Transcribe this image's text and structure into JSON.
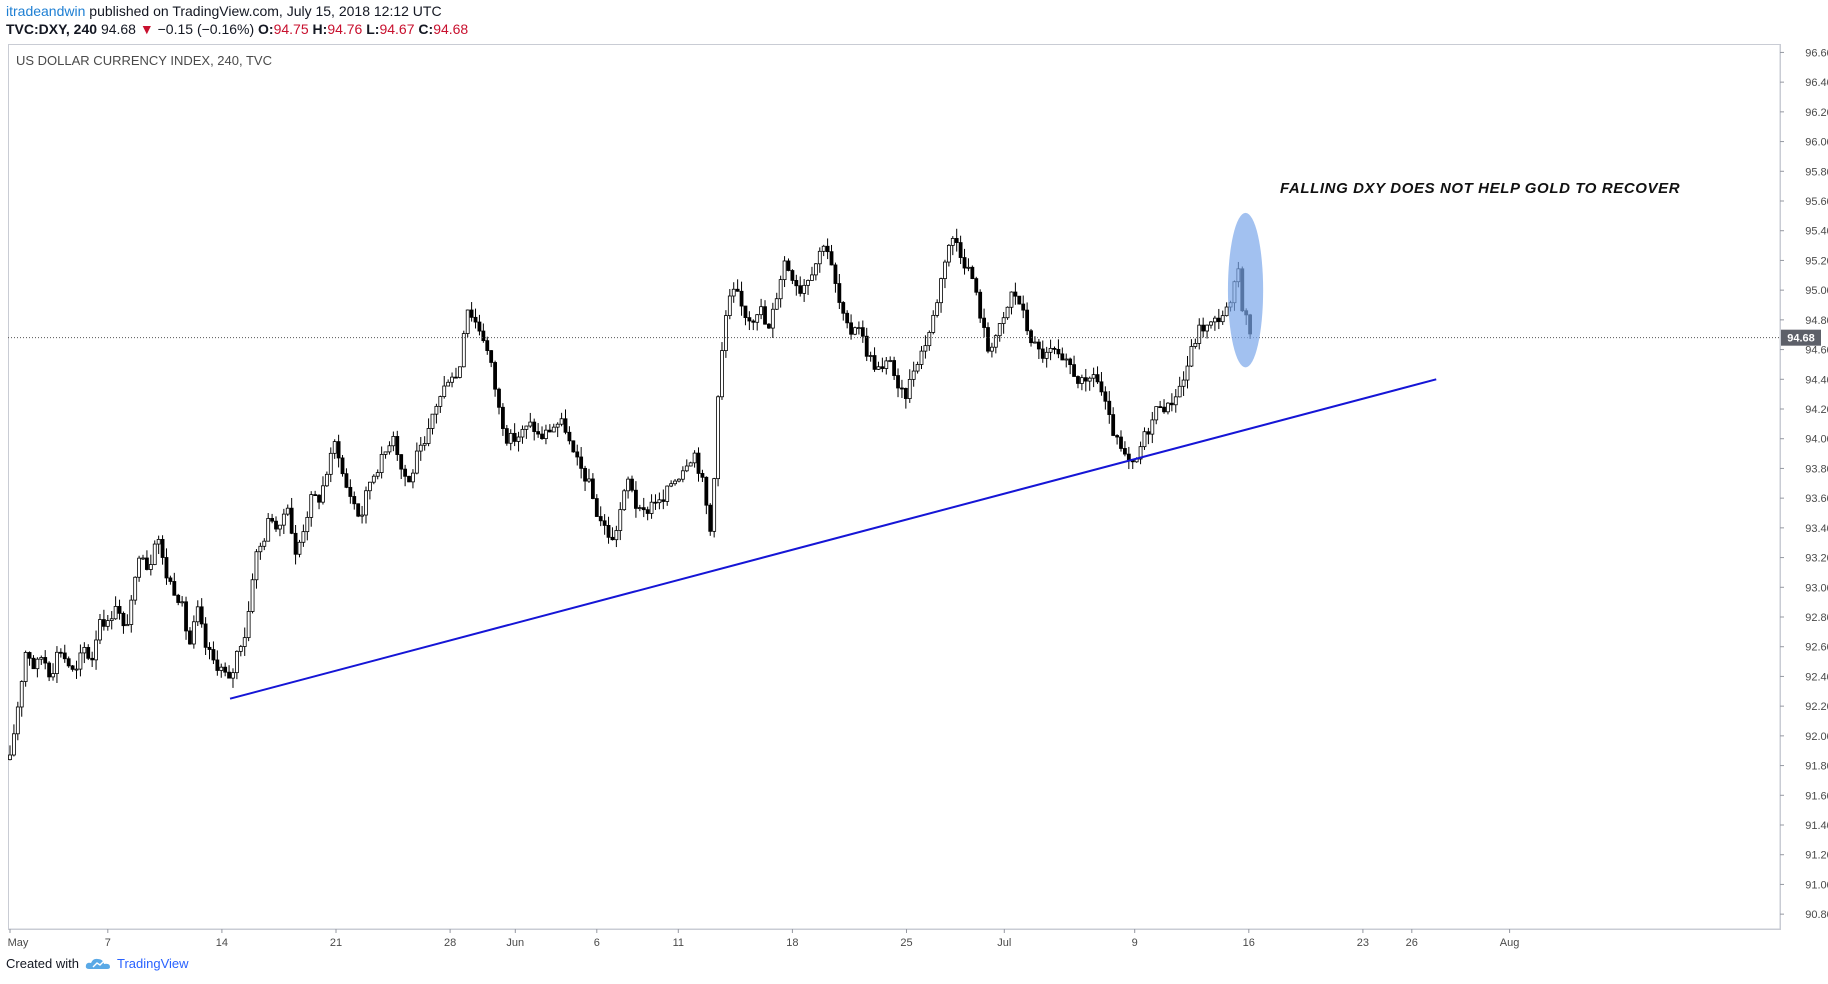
{
  "header": {
    "author": "itradeandwin",
    "published": "published on TradingView.com, July 15, 2018 12:12 UTC"
  },
  "ohlc": {
    "symbol": "TVC:DXY, 240",
    "last": "94.68",
    "change": "−0.15 (−0.16%)",
    "o_label": "O:",
    "o": "94.75",
    "h_label": "H:",
    "h": "94.76",
    "l_label": "L:",
    "l": "94.67",
    "c_label": "C:",
    "c": "94.68"
  },
  "footer": {
    "created_with": "Created with",
    "brand": "TradingView"
  },
  "colors": {
    "down": "#c8102e",
    "trendline": "#1515d6",
    "highlight": "#7aa7ea"
  },
  "chart_data": {
    "type": "candlestick",
    "title": "US DOLLAR CURRENCY INDEX, 240, TVC",
    "annotation": "FALLING DXY DOES NOT HELP GOLD TO RECOVER",
    "y_ticks": [
      "96.60",
      "96.40",
      "96.20",
      "96.00",
      "95.80",
      "95.60",
      "95.40",
      "95.20",
      "95.00",
      "94.80",
      "94.60",
      "94.40",
      "94.20",
      "94.00",
      "93.80",
      "93.60",
      "93.40",
      "93.20",
      "93.00",
      "92.80",
      "92.60",
      "92.40",
      "92.20",
      "92.00",
      "91.80",
      "91.60",
      "91.40",
      "91.20",
      "91.00",
      "90.80"
    ],
    "ylim": [
      90.7,
      96.65
    ],
    "x_ticks": [
      {
        "label": "May",
        "day": 0
      },
      {
        "label": "7",
        "day": 6
      },
      {
        "label": "14",
        "day": 13
      },
      {
        "label": "21",
        "day": 20
      },
      {
        "label": "28",
        "day": 27
      },
      {
        "label": "Jun",
        "day": 31
      },
      {
        "label": "6",
        "day": 36
      },
      {
        "label": "11",
        "day": 41
      },
      {
        "label": "18",
        "day": 48
      },
      {
        "label": "25",
        "day": 55
      },
      {
        "label": "Jul",
        "day": 61
      },
      {
        "label": "9",
        "day": 69
      },
      {
        "label": "16",
        "day": 76
      },
      {
        "label": "23",
        "day": 83
      },
      {
        "label": "26",
        "day": 86
      },
      {
        "label": "Aug",
        "day": 92
      }
    ],
    "last_price": 94.68,
    "last_price_label": "94.68",
    "path": [
      [
        0,
        91.84
      ],
      [
        1,
        92.6
      ],
      [
        1.5,
        92.45
      ],
      [
        2,
        92.55
      ],
      [
        2.5,
        92.4
      ],
      [
        3,
        92.6
      ],
      [
        4,
        92.4
      ],
      [
        4.5,
        92.6
      ],
      [
        5,
        92.5
      ],
      [
        5.5,
        92.8
      ],
      [
        6,
        92.75
      ],
      [
        6.5,
        92.9
      ],
      [
        7,
        92.7
      ],
      [
        7.5,
        92.9
      ],
      [
        8,
        93.3
      ],
      [
        8.5,
        93.1
      ],
      [
        9,
        93.4
      ],
      [
        9.5,
        93.1
      ],
      [
        10,
        93.0
      ],
      [
        10.5,
        92.9
      ],
      [
        11,
        92.6
      ],
      [
        11.5,
        92.85
      ],
      [
        12,
        92.6
      ],
      [
        12.5,
        92.5
      ],
      [
        13,
        92.45
      ],
      [
        13.5,
        92.35
      ],
      [
        14,
        92.6
      ],
      [
        14.5,
        92.7
      ],
      [
        15,
        93.2
      ],
      [
        15.5,
        93.3
      ],
      [
        16,
        93.5
      ],
      [
        16.5,
        93.35
      ],
      [
        17,
        93.6
      ],
      [
        17.5,
        93.2
      ],
      [
        18,
        93.4
      ],
      [
        18.5,
        93.6
      ],
      [
        19,
        93.6
      ],
      [
        19.5,
        93.8
      ],
      [
        20,
        94.0
      ],
      [
        20.5,
        93.7
      ],
      [
        21,
        93.6
      ],
      [
        21.5,
        93.45
      ],
      [
        22,
        93.7
      ],
      [
        23,
        93.9
      ],
      [
        23.5,
        94.05
      ],
      [
        24,
        93.8
      ],
      [
        24.5,
        93.7
      ],
      [
        25,
        93.9
      ],
      [
        25.5,
        93.95
      ],
      [
        26,
        94.2
      ],
      [
        26.5,
        94.3
      ],
      [
        27,
        94.45
      ],
      [
        27.5,
        94.4
      ],
      [
        28,
        94.9
      ],
      [
        28.5,
        94.8
      ],
      [
        29,
        94.7
      ],
      [
        29.5,
        94.5
      ],
      [
        30,
        94.2
      ],
      [
        30.5,
        94.0
      ],
      [
        31,
        94.0
      ],
      [
        31.5,
        94.05
      ],
      [
        32,
        94.1
      ],
      [
        32.5,
        94.0
      ],
      [
        33,
        94.05
      ],
      [
        33.5,
        94.1
      ],
      [
        34,
        94.1
      ],
      [
        34.5,
        93.9
      ],
      [
        35,
        93.8
      ],
      [
        35.5,
        93.7
      ],
      [
        36,
        93.5
      ],
      [
        36.5,
        93.4
      ],
      [
        37,
        93.3
      ],
      [
        37.5,
        93.55
      ],
      [
        38,
        93.75
      ],
      [
        38.5,
        93.5
      ],
      [
        39,
        93.5
      ],
      [
        39.5,
        93.6
      ],
      [
        40,
        93.55
      ],
      [
        40.5,
        93.7
      ],
      [
        41,
        93.75
      ],
      [
        41.5,
        93.85
      ],
      [
        42,
        93.9
      ],
      [
        42.5,
        93.7
      ],
      [
        43,
        93.35
      ],
      [
        43.5,
        94.4
      ],
      [
        44,
        94.9
      ],
      [
        44.5,
        95.0
      ],
      [
        45,
        94.85
      ],
      [
        45.5,
        94.8
      ],
      [
        46,
        94.9
      ],
      [
        46.5,
        94.7
      ],
      [
        47,
        94.95
      ],
      [
        47.5,
        95.2
      ],
      [
        48,
        95.1
      ],
      [
        48.5,
        95.0
      ],
      [
        49,
        95.1
      ],
      [
        49.5,
        95.2
      ],
      [
        50,
        95.35
      ],
      [
        50.5,
        95.1
      ],
      [
        51,
        94.85
      ],
      [
        51.5,
        94.7
      ],
      [
        52,
        94.8
      ],
      [
        52.5,
        94.6
      ],
      [
        53,
        94.5
      ],
      [
        53.5,
        94.45
      ],
      [
        54,
        94.55
      ],
      [
        54.5,
        94.3
      ],
      [
        55,
        94.3
      ],
      [
        55.5,
        94.5
      ],
      [
        56,
        94.6
      ],
      [
        56.5,
        94.75
      ],
      [
        57,
        95.0
      ],
      [
        57.5,
        95.3
      ],
      [
        58,
        95.35
      ],
      [
        58.5,
        95.2
      ],
      [
        59,
        95.1
      ],
      [
        59.5,
        94.85
      ],
      [
        60,
        94.6
      ],
      [
        60.5,
        94.7
      ],
      [
        61,
        94.8
      ],
      [
        61.5,
        95.0
      ],
      [
        62,
        94.9
      ],
      [
        62.5,
        94.7
      ],
      [
        63,
        94.6
      ],
      [
        63.5,
        94.55
      ],
      [
        64,
        94.6
      ],
      [
        64.5,
        94.5
      ],
      [
        65,
        94.5
      ],
      [
        65.5,
        94.4
      ],
      [
        66,
        94.35
      ],
      [
        66.5,
        94.45
      ],
      [
        67,
        94.3
      ],
      [
        67.5,
        94.1
      ],
      [
        68,
        93.95
      ],
      [
        68.5,
        93.85
      ],
      [
        69,
        93.8
      ],
      [
        69.5,
        94.0
      ],
      [
        70,
        94.1
      ],
      [
        70.5,
        94.25
      ],
      [
        71,
        94.2
      ],
      [
        71.5,
        94.3
      ],
      [
        72,
        94.4
      ],
      [
        72.5,
        94.6
      ],
      [
        73,
        94.75
      ],
      [
        73.5,
        94.75
      ],
      [
        74,
        94.8
      ],
      [
        74.5,
        94.85
      ],
      [
        75,
        94.9
      ],
      [
        75.3,
        95.2
      ],
      [
        75.6,
        94.9
      ],
      [
        76,
        94.75
      ],
      [
        76.2,
        94.68
      ]
    ],
    "trendline": {
      "start": {
        "day": 13.5,
        "value": 92.25
      },
      "end": {
        "day": 87.5,
        "value": 94.4
      }
    },
    "highlight": {
      "center": {
        "day": 75.8,
        "value": 95.0
      },
      "half_width_days": 0.8,
      "half_height_value": 0.52
    }
  }
}
